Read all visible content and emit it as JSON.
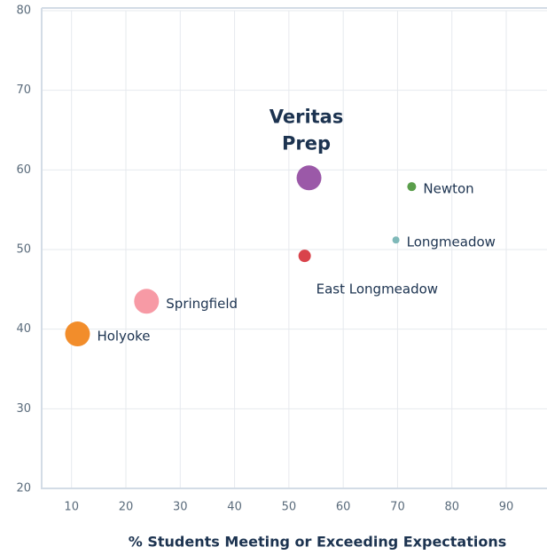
{
  "chart_data": {
    "type": "scatter",
    "x_label": "% Students Meeting or Exceeding Expectations",
    "labels": [
      "Veritas Prep",
      "Newton",
      "Longmeadow",
      "East Longmeadow",
      "Springfield",
      "Holyoke"
    ],
    "x": [
      53.7,
      72.6,
      69.7,
      52.9,
      23.8,
      11.1
    ],
    "y": [
      59.0,
      57.9,
      51.2,
      49.2,
      43.5,
      39.4
    ],
    "sizes": [
      14,
      5,
      4,
      7,
      14,
      14
    ],
    "colors": [
      "#9b59a8",
      "#5a9e4b",
      "#7fb9b9",
      "#d9434b",
      "#f79aa5",
      "#f28d2b"
    ],
    "xlim": [
      4.5,
      97.5
    ],
    "xticks": [
      10,
      20,
      30,
      40,
      50,
      60,
      70,
      80,
      90
    ],
    "ylim": [
      20,
      80
    ],
    "yticks": [
      20,
      30,
      40,
      50,
      60,
      70,
      80
    ],
    "grid": true
  }
}
